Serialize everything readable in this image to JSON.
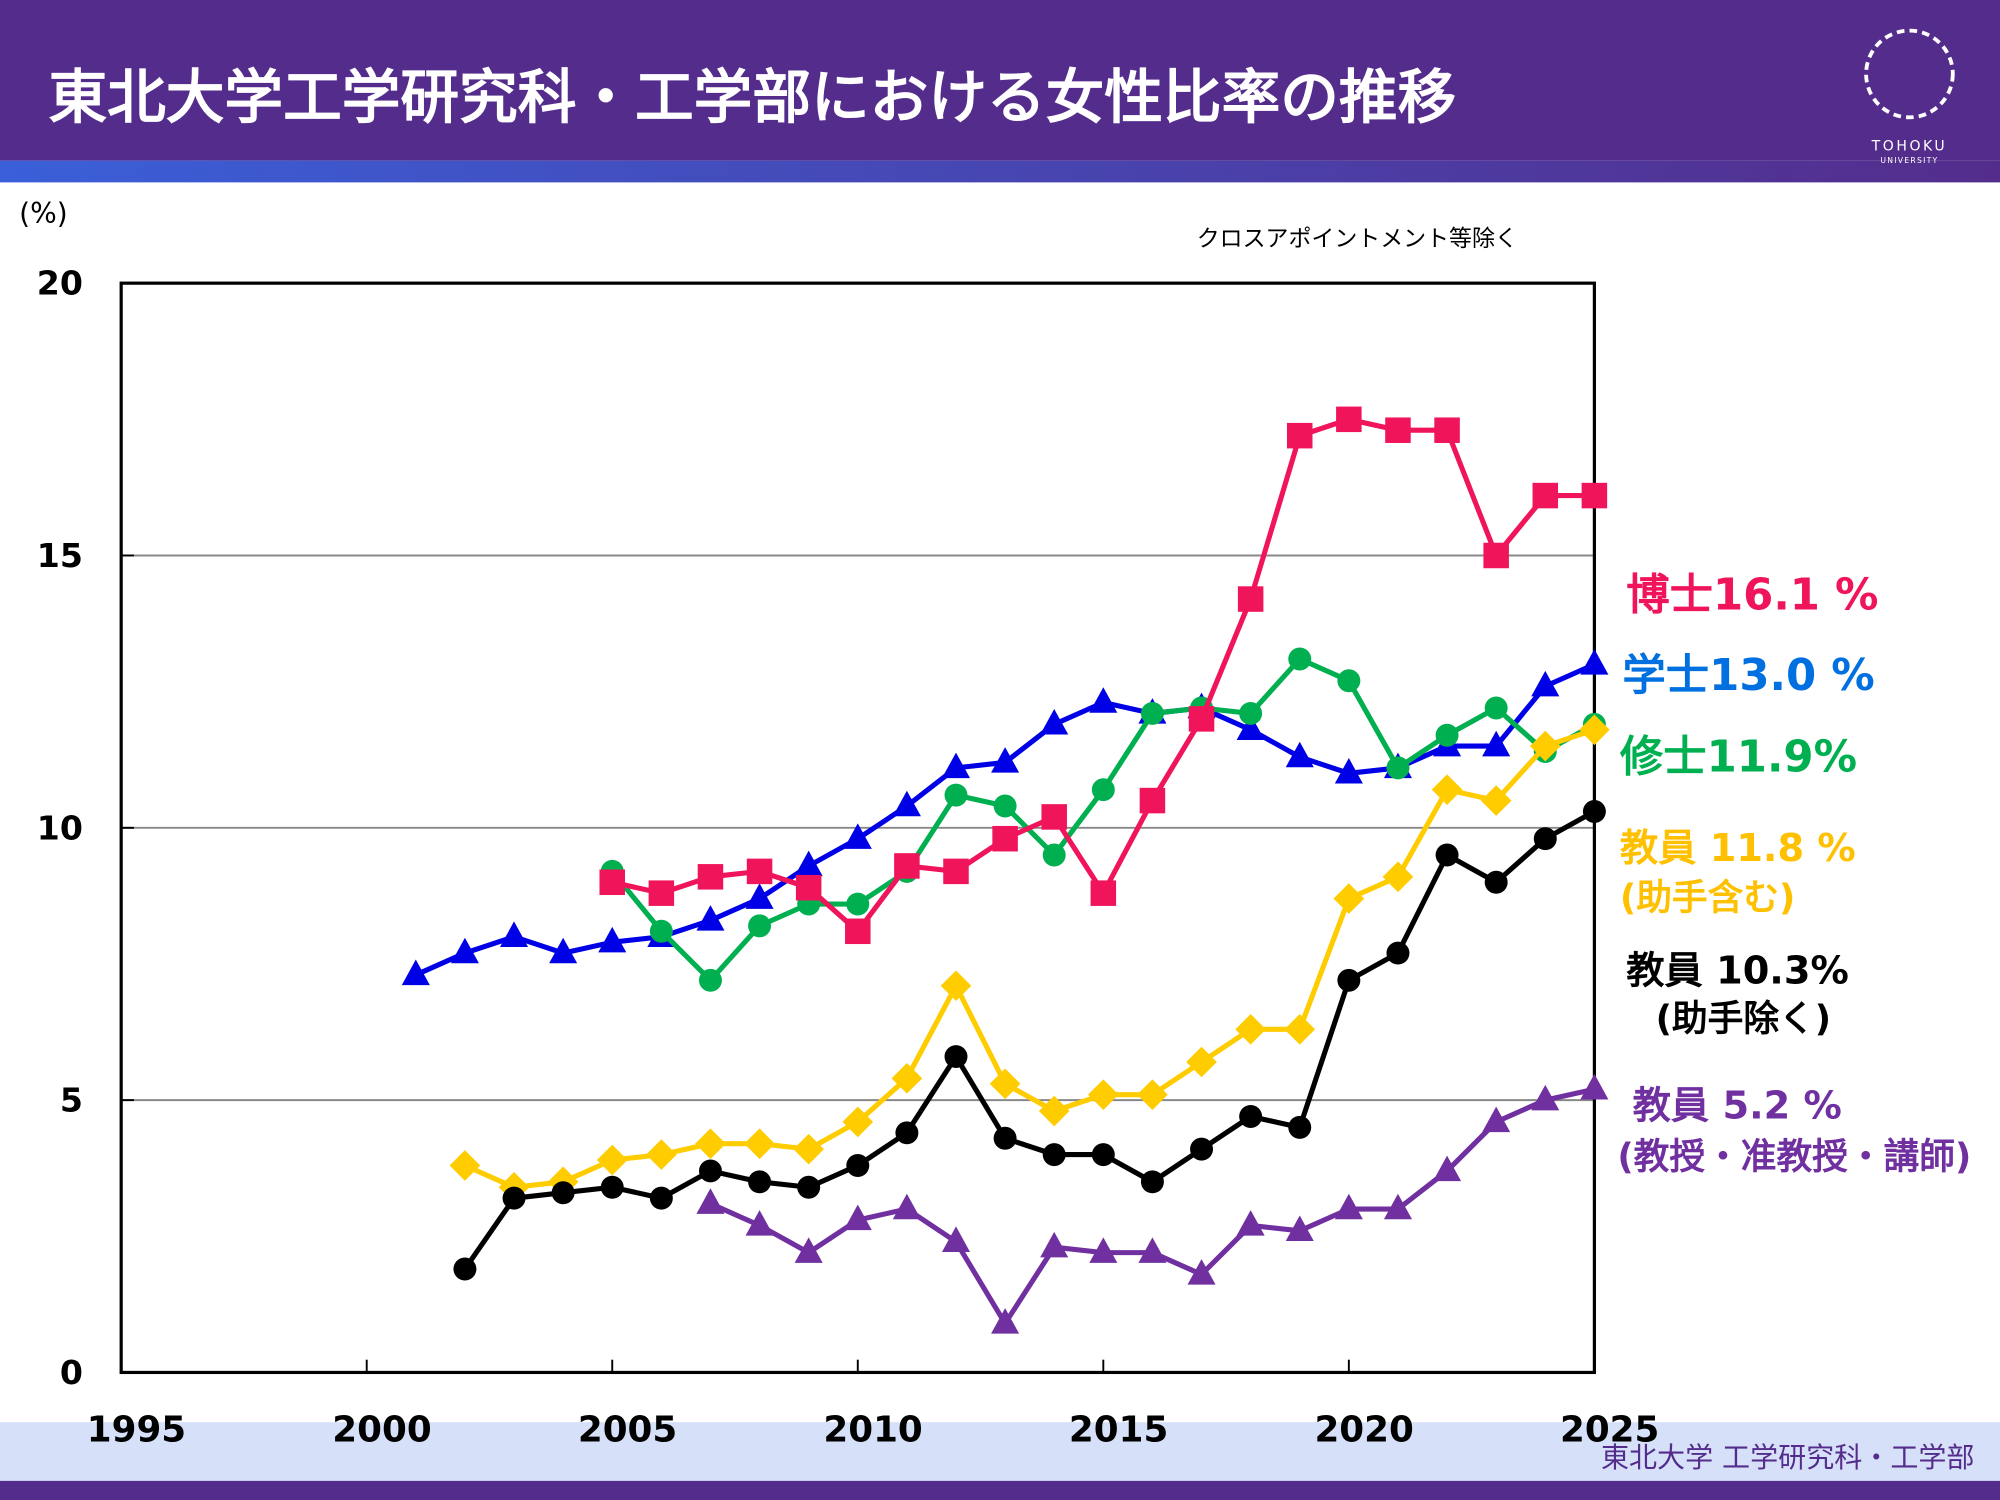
{
  "header": {
    "title": "東北大学工学研究科・工学部における女性比率の推移"
  },
  "logo": {
    "name": "TOHOKU",
    "sub": "UNIVERSITY"
  },
  "footer": {
    "text": "東北大学 工学研究科・工学部"
  },
  "chart_data": {
    "type": "line",
    "y_label": "(%)",
    "subtitle": "クロスアポイントメント等除く",
    "x": [
      2001,
      2002,
      2003,
      2004,
      2005,
      2006,
      2007,
      2008,
      2009,
      2010,
      2011,
      2012,
      2013,
      2014,
      2015,
      2016,
      2017,
      2018,
      2019,
      2020,
      2021,
      2022,
      2023,
      2024,
      2025
    ],
    "xlim": [
      1995,
      2025
    ],
    "xticks": [
      1995,
      2000,
      2005,
      2010,
      2015,
      2020,
      2025
    ],
    "ylim": [
      0,
      20
    ],
    "yticks": [
      0,
      5,
      10,
      15,
      20
    ],
    "grid": true,
    "series": [
      {
        "color": "#0000e6",
        "marker": "triangle",
        "values": [
          7.3,
          7.7,
          8.0,
          7.7,
          7.9,
          8.0,
          8.3,
          8.7,
          9.3,
          9.8,
          10.4,
          11.1,
          11.2,
          11.9,
          12.3,
          12.1,
          12.2,
          11.8,
          11.3,
          11.0,
          11.1,
          11.5,
          11.5,
          12.6,
          13.0
        ]
      },
      {
        "color": "#00b050",
        "marker": "circle",
        "values": [
          null,
          null,
          null,
          null,
          9.2,
          8.1,
          7.2,
          8.2,
          8.6,
          8.6,
          9.2,
          10.6,
          10.4,
          9.5,
          10.7,
          12.1,
          12.2,
          12.1,
          13.1,
          12.7,
          11.1,
          11.7,
          12.2,
          11.4,
          11.9
        ]
      },
      {
        "color": "#f0145a",
        "marker": "square",
        "values": [
          null,
          null,
          null,
          null,
          9.0,
          8.8,
          9.1,
          9.2,
          8.9,
          8.1,
          9.3,
          9.2,
          9.8,
          10.2,
          8.8,
          10.5,
          12.0,
          14.2,
          17.2,
          17.5,
          17.3,
          17.3,
          15.0,
          16.1,
          16.1
        ]
      },
      {
        "color": "#ffcc00",
        "marker": "diamond",
        "values": [
          null,
          3.8,
          3.4,
          3.5,
          3.9,
          4.0,
          4.2,
          4.2,
          4.1,
          4.6,
          5.4,
          7.1,
          5.3,
          4.8,
          5.1,
          5.1,
          5.7,
          6.3,
          6.3,
          8.7,
          9.1,
          10.7,
          10.5,
          11.5,
          11.8
        ]
      },
      {
        "color": "#000000",
        "marker": "circle",
        "values": [
          null,
          1.9,
          3.2,
          3.3,
          3.4,
          3.2,
          3.7,
          3.5,
          3.4,
          3.8,
          4.4,
          5.8,
          4.3,
          4.0,
          4.0,
          3.5,
          4.1,
          4.7,
          4.5,
          7.2,
          7.7,
          9.5,
          9.0,
          9.8,
          10.3
        ]
      },
      {
        "color": "#7030a0",
        "marker": "triangle",
        "values": [
          null,
          null,
          null,
          null,
          null,
          null,
          3.1,
          2.7,
          2.2,
          2.8,
          3.0,
          2.4,
          0.9,
          2.3,
          2.2,
          2.2,
          1.8,
          2.7,
          2.6,
          3.0,
          3.0,
          3.7,
          4.6,
          5.0,
          5.2
        ]
      }
    ],
    "annotations": [
      {
        "text": "博士16.1 %",
        "color": "#f0145a"
      },
      {
        "text": "学士13.0 %",
        "color": "#0070e0"
      },
      {
        "text": "修士11.9%",
        "color": "#00b050"
      },
      {
        "text": "教員  11.8 %",
        "color": "#ffc000"
      },
      {
        "text": "(助手含む)",
        "color": "#ffc000"
      },
      {
        "text": "教員 10.3%",
        "color": "#000000"
      },
      {
        "text": "(助手除く)",
        "color": "#000000"
      },
      {
        "text": "教員  5.2 %",
        "color": "#7030a0"
      },
      {
        "text": "(教授・准教授・講師)",
        "color": "#7030a0"
      }
    ]
  }
}
